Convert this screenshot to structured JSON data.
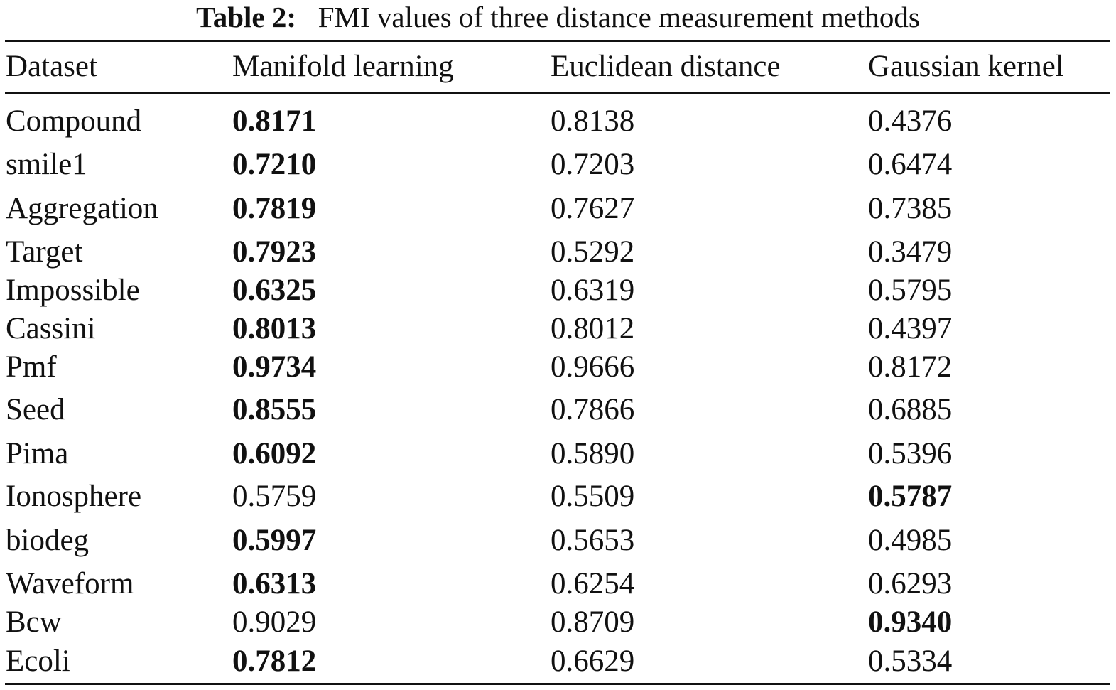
{
  "caption": {
    "label": "Table 2:",
    "text": "FMI values of three distance measurement methods"
  },
  "table": {
    "headers": [
      "Dataset",
      "Manifold learning",
      "Euclidean distance",
      "Gaussian kernel"
    ],
    "rows": [
      {
        "dataset": "Compound",
        "values": [
          "0.8171",
          "0.8138",
          "0.4376"
        ],
        "best": 0
      },
      {
        "dataset": "smile1",
        "values": [
          "0.7210",
          "0.7203",
          "0.6474"
        ],
        "best": 0
      },
      {
        "dataset": "Aggregation",
        "values": [
          "0.7819",
          "0.7627",
          "0.7385"
        ],
        "best": 0
      },
      {
        "dataset": "Target",
        "values": [
          "0.7923",
          "0.5292",
          "0.3479"
        ],
        "best": 0
      },
      {
        "dataset": "Impossible",
        "values": [
          "0.6325",
          "0.6319",
          "0.5795"
        ],
        "best": 0
      },
      {
        "dataset": "Cassini",
        "values": [
          "0.8013",
          "0.8012",
          "0.4397"
        ],
        "best": 0
      },
      {
        "dataset": "Pmf",
        "values": [
          "0.9734",
          "0.9666",
          "0.8172"
        ],
        "best": 0
      },
      {
        "dataset": "Seed",
        "values": [
          "0.8555",
          "0.7866",
          "0.6885"
        ],
        "best": 0
      },
      {
        "dataset": "Pima",
        "values": [
          "0.6092",
          "0.5890",
          "0.5396"
        ],
        "best": 0
      },
      {
        "dataset": "Ionosphere",
        "values": [
          "0.5759",
          "0.5509",
          "0.5787"
        ],
        "best": 2
      },
      {
        "dataset": "biodeg",
        "values": [
          "0.5997",
          "0.5653",
          "0.4985"
        ],
        "best": 0
      },
      {
        "dataset": "Waveform",
        "values": [
          "0.6313",
          "0.6254",
          "0.6293"
        ],
        "best": 0
      },
      {
        "dataset": "Bcw",
        "values": [
          "0.9029",
          "0.8709",
          "0.9340"
        ],
        "best": 2
      },
      {
        "dataset": "Ecoli",
        "values": [
          "0.7812",
          "0.6629",
          "0.5334"
        ],
        "best": 0
      }
    ]
  }
}
